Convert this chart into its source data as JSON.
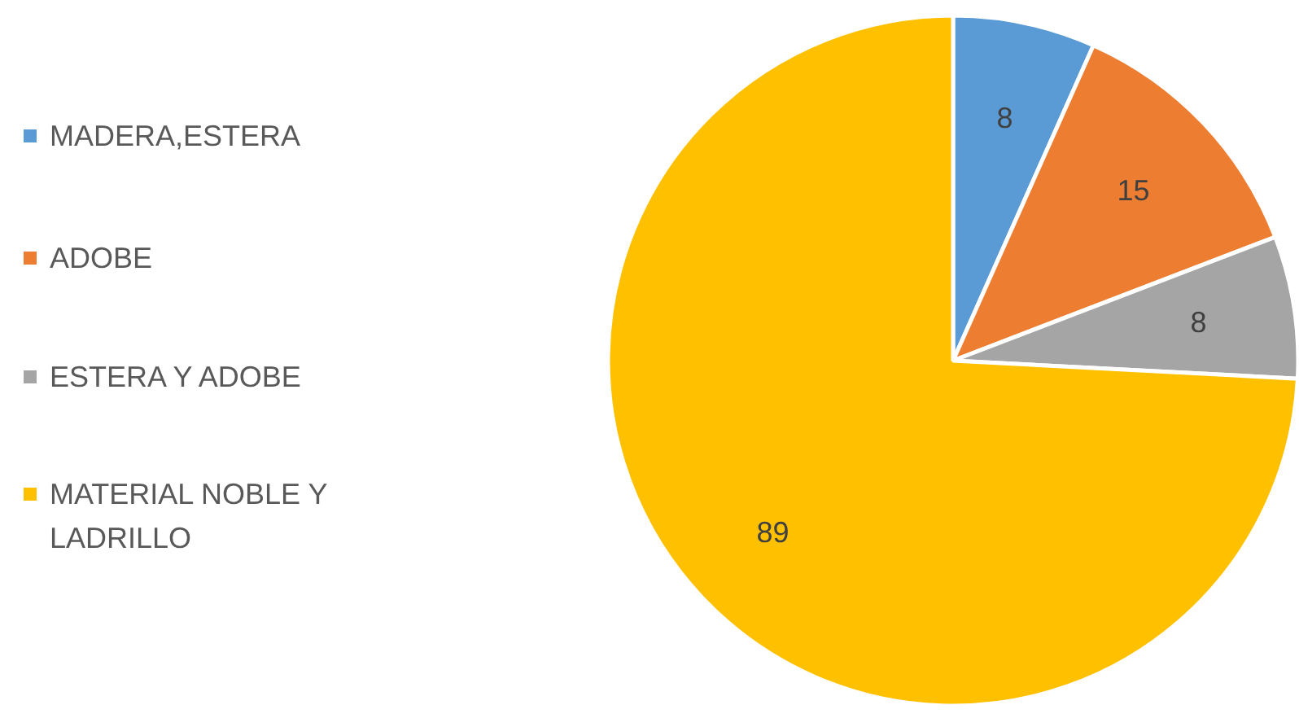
{
  "chart_data": {
    "type": "pie",
    "categories": [
      "MADERA,ESTERA",
      "ADOBE",
      "ESTERA Y ADOBE",
      "MATERIAL NOBLE Y LADRILLO"
    ],
    "values": [
      8,
      15,
      8,
      89
    ],
    "colors": [
      "#5b9bd5",
      "#ed7d31",
      "#a5a5a5",
      "#ffc000"
    ],
    "data_labels": true,
    "legend": "left"
  }
}
